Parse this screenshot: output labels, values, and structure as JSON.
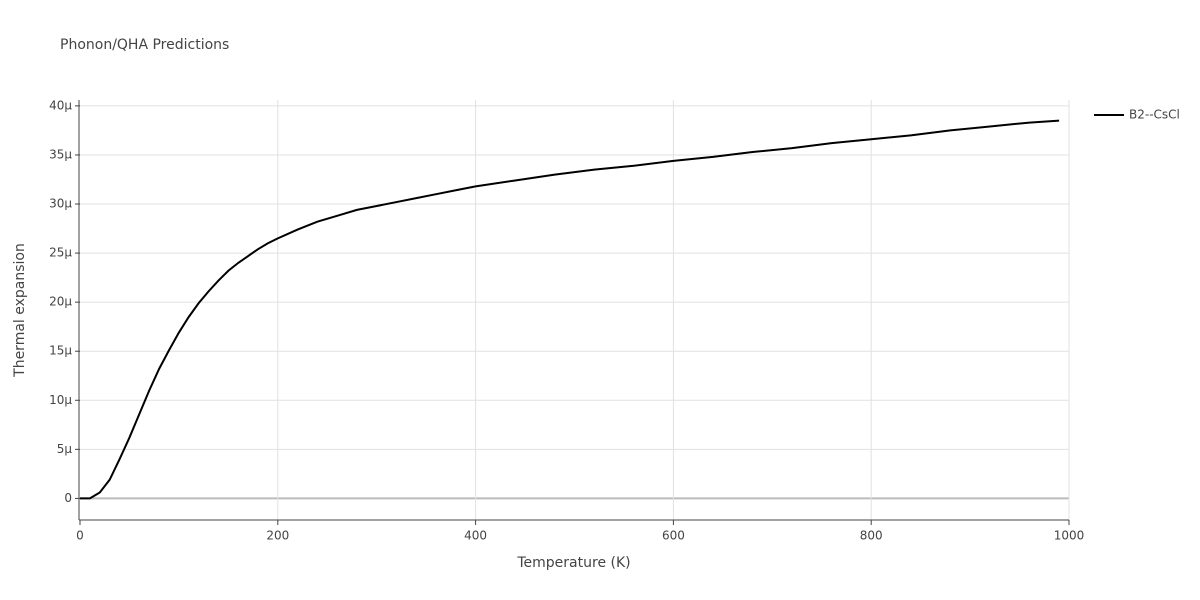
{
  "chart_data": {
    "type": "line",
    "title": "Phonon/QHA Predictions",
    "x_label": "Temperature (K)",
    "y_label": "Thermal expansion",
    "x": [
      0,
      10,
      20,
      30,
      40,
      50,
      60,
      70,
      80,
      90,
      100,
      110,
      120,
      130,
      140,
      150,
      160,
      170,
      180,
      190,
      200,
      220,
      240,
      260,
      280,
      300,
      320,
      340,
      360,
      380,
      400,
      440,
      480,
      520,
      560,
      600,
      640,
      680,
      720,
      760,
      800,
      840,
      880,
      920,
      960,
      990
    ],
    "series": [
      {
        "name": "B2--CsCl",
        "color": "#000000",
        "values": [
          0,
          0,
          6e-07,
          1.9e-06,
          4e-06,
          6.2e-06,
          8.6e-06,
          1.1e-05,
          1.32e-05,
          1.51e-05,
          1.69e-05,
          1.85e-05,
          1.99e-05,
          2.11e-05,
          2.22e-05,
          2.32e-05,
          2.4e-05,
          2.47e-05,
          2.54e-05,
          2.6e-05,
          2.65e-05,
          2.74e-05,
          2.82e-05,
          2.88e-05,
          2.94e-05,
          2.98e-05,
          3.02e-05,
          3.06e-05,
          3.1e-05,
          3.14e-05,
          3.18e-05,
          3.24e-05,
          3.3e-05,
          3.35e-05,
          3.39e-05,
          3.44e-05,
          3.48e-05,
          3.53e-05,
          3.57e-05,
          3.62e-05,
          3.66e-05,
          3.7e-05,
          3.75e-05,
          3.79e-05,
          3.83e-05,
          3.85e-05
        ]
      }
    ],
    "xlim": [
      0,
      1000
    ],
    "xticks": [
      0,
      200,
      400,
      600,
      800,
      1000
    ],
    "ylim": [
      -2.2e-06,
      4.06e-05
    ],
    "yticks": [
      0,
      {
        "value": 5e-06,
        "label": "5μ"
      },
      {
        "value": 1e-05,
        "label": "10μ"
      },
      {
        "value": 1.5e-05,
        "label": "15μ"
      },
      {
        "value": 2e-05,
        "label": "20μ"
      },
      {
        "value": 2.5e-05,
        "label": "25μ"
      },
      {
        "value": 3e-05,
        "label": "30μ"
      },
      {
        "value": 3.5e-05,
        "label": "35μ"
      },
      {
        "value": 4e-05,
        "label": "40μ"
      }
    ],
    "grid": true,
    "legend": "top-right"
  }
}
